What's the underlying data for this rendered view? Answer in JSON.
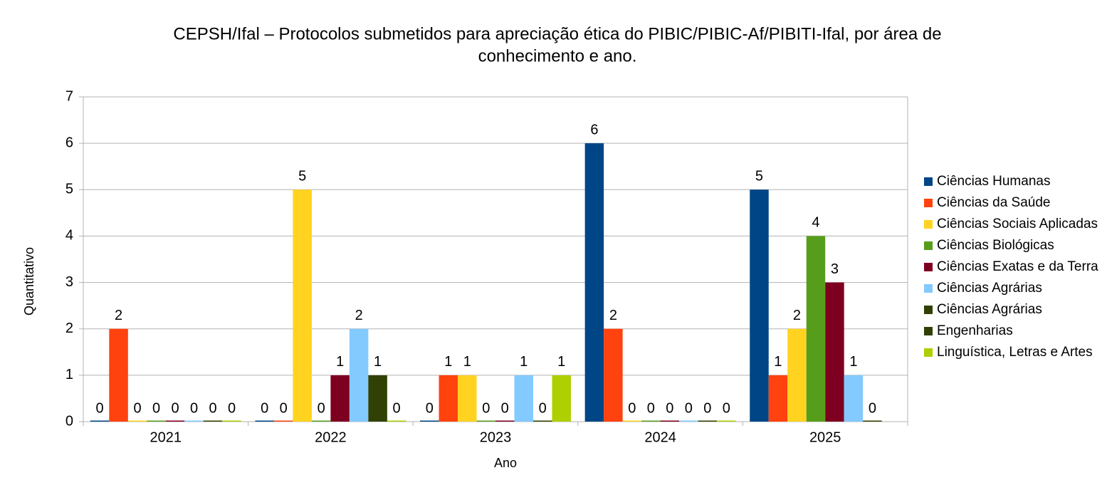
{
  "chart_data": {
    "type": "bar",
    "title": "CEPSH/Ifal – Protocolos submetidos para apreciação ética do PIBIC/PIBIC-Af/PIBITI-Ifal, por área de",
    "subtitle": "conhecimento e ano.",
    "x_label": "Ano",
    "y_label": "Quantitativo",
    "categories": [
      "2021",
      "2022",
      "2023",
      "2024",
      "2025"
    ],
    "series": [
      {
        "name": "Ciências Humanas",
        "color": "#004586",
        "values": [
          0,
          0,
          0,
          6,
          5
        ]
      },
      {
        "name": "Ciências da Saúde",
        "color": "#ff420e",
        "values": [
          2,
          0,
          1,
          2,
          1
        ]
      },
      {
        "name": "Ciências Sociais Aplicadas",
        "color": "#ffd320",
        "values": [
          0,
          5,
          1,
          0,
          2
        ]
      },
      {
        "name": "Ciências Biológicas",
        "color": "#579d1c",
        "values": [
          0,
          0,
          0,
          0,
          4
        ]
      },
      {
        "name": "Ciências Exatas e da Terra",
        "color": "#7e0021",
        "values": [
          0,
          1,
          0,
          0,
          3
        ]
      },
      {
        "name": "Ciências Agrárias",
        "color": "#83caff",
        "values": [
          0,
          2,
          1,
          0,
          1
        ]
      },
      {
        "name": "Ciências Agrárias",
        "color": "#314004",
        "values": [
          0,
          1,
          0,
          0,
          0
        ]
      },
      {
        "name": "Engenharias",
        "color": "#314004",
        "values": [
          null,
          null,
          null,
          null,
          null
        ]
      },
      {
        "name": "Linguística, Letras e Artes",
        "color": "#aecf00",
        "values": [
          0,
          0,
          1,
          0,
          null
        ]
      }
    ],
    "ylim": [
      0,
      7
    ],
    "yticks": [
      0,
      1,
      2,
      3,
      4,
      5,
      6,
      7
    ],
    "grid": true,
    "legend": "right"
  }
}
